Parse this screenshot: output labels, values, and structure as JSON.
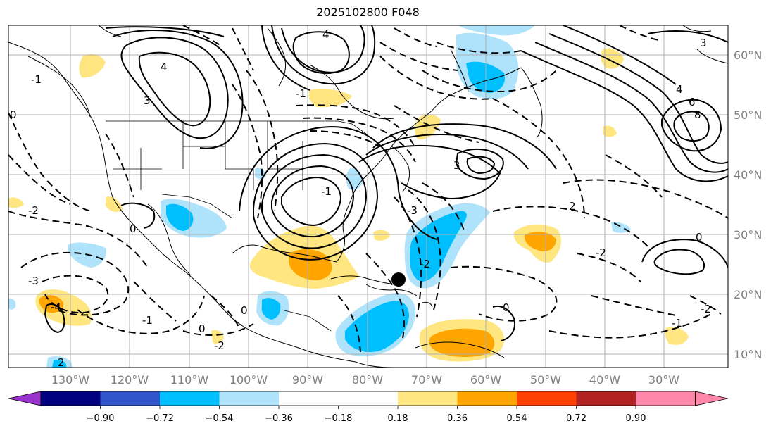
{
  "title": "2025102800 F048",
  "map": {
    "lon_labels": [
      "130°W",
      "120°W",
      "110°W",
      "100°W",
      "90°W",
      "80°W",
      "70°W",
      "60°W",
      "50°W",
      "40°W",
      "30°W"
    ],
    "lat_labels": [
      "60°N",
      "50°N",
      "40°N",
      "30°N",
      "20°N",
      "10°N"
    ],
    "contour_labels": [
      "4",
      "3",
      "0",
      "-1",
      "-2",
      "0",
      "-3",
      "-4",
      "2",
      "-1",
      "0",
      "-2",
      "0",
      "-1",
      "4",
      "3",
      "6",
      "8",
      "4",
      "-2",
      "2",
      "3",
      "-3",
      "0",
      "-1",
      "-1",
      "0",
      "-2",
      "-2"
    ],
    "storm_marker": "black-dot"
  },
  "colorbar": {
    "tick_labels": [
      "−0.90",
      "−0.72",
      "−0.54",
      "−0.36",
      "−0.18",
      "0.18",
      "0.36",
      "0.54",
      "0.72",
      "0.90"
    ],
    "colors": [
      "#9933cc",
      "#000080",
      "#3355cc",
      "#00bfff",
      "#aee3fb",
      "#ffffff",
      "#ffe680",
      "#ffa500",
      "#ff4000",
      "#b22222",
      "#ff88aa"
    ]
  }
}
